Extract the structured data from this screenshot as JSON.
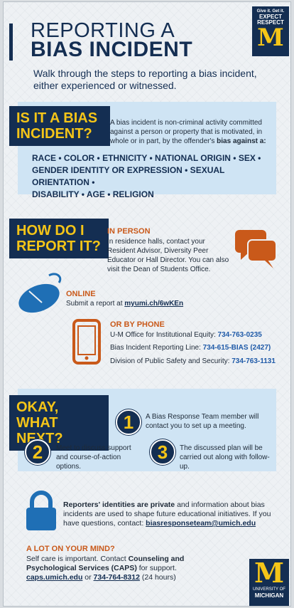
{
  "header": {
    "title_line1": "REPORTING A",
    "title_line2": "BIAS INCIDENT",
    "badge_tag_line1": "Give it. Get it.",
    "badge_tag_line2": "EXPECT",
    "badge_tag_line3": "RESPECT",
    "badge_logo": "M"
  },
  "intro": "Walk through the steps to reporting a bias incident, either experienced or witnessed.",
  "section1": {
    "heading_line1": "IS IT A BIAS",
    "heading_line2": "INCIDENT?",
    "definition": "A bias incident is non-criminal activity committed against a person or property that is motivated, in whole or in part, by the offender's",
    "definition_bold": "bias against a:",
    "categories_line1": "RACE • COLOR • ETHNICITY • NATIONAL ORIGIN • SEX •",
    "categories_line2": "GENDER IDENTITY OR EXPRESSION • SEXUAL ORIENTATION •",
    "categories_line3": "DISABILITY • AGE • RELIGION"
  },
  "section2": {
    "heading_line1": "HOW DO I",
    "heading_line2": "REPORT IT?",
    "in_person_title": "IN PERSON",
    "in_person_text": "In residence halls, contact your Resident Advisor, Diversity Peer Educator or Hall Director. You can also visit the Dean of Students Office.",
    "online_title": "ONLINE",
    "online_text": "Submit a report at",
    "online_link": "myumi.ch/6wKEn",
    "phone_title": "OR BY PHONE",
    "phone1_label": "U-M Office for Institutional Equity:",
    "phone1_number": "734-763-0235",
    "phone2_label": "Bias Incident Reporting Line:",
    "phone2_number": "734-615-BIAS (2427)",
    "phone3_label": "Division of Public Safety and Security:",
    "phone3_number": "734-763-1131"
  },
  "section3": {
    "heading_line1": "OKAY, WHAT",
    "heading_line2": "NEXT?",
    "steps": [
      {
        "num": "1",
        "text": "A Bias Response Team member will contact you to set up a meeting."
      },
      {
        "num": "2",
        "text": "Meet to discuss support and course-of-action options."
      },
      {
        "num": "3",
        "text": "The discussed plan will be carried out along with follow-up."
      }
    ]
  },
  "privacy": {
    "bold": "Reporters' identities are private",
    "text": "and information about bias incidents are used to shape future educational initiatives. If you have questions, contact:",
    "email": "biasresponseteam@umich.edu"
  },
  "footer": {
    "title": "A LOT ON YOUR MIND?",
    "text1": "Self care is important. Contact",
    "text_bold": "Counseling and Psychological Services (CAPS)",
    "text2": "for support.",
    "link": "caps.umich.edu",
    "or": "or",
    "phone": "734-764-8312",
    "hours": "(24 hours)",
    "logo_m": "M",
    "logo_line1": "UNIVERSITY OF",
    "logo_line2": "MICHIGAN"
  },
  "colors": {
    "navy": "#142e52",
    "maize": "#f5c518",
    "orange": "#c9591a",
    "lightblue": "#cfe4f4",
    "iconblue": "#1f6fb5"
  },
  "icons": [
    "speech-bubbles-icon",
    "computer-mouse-icon",
    "smartphone-icon",
    "padlock-icon"
  ]
}
